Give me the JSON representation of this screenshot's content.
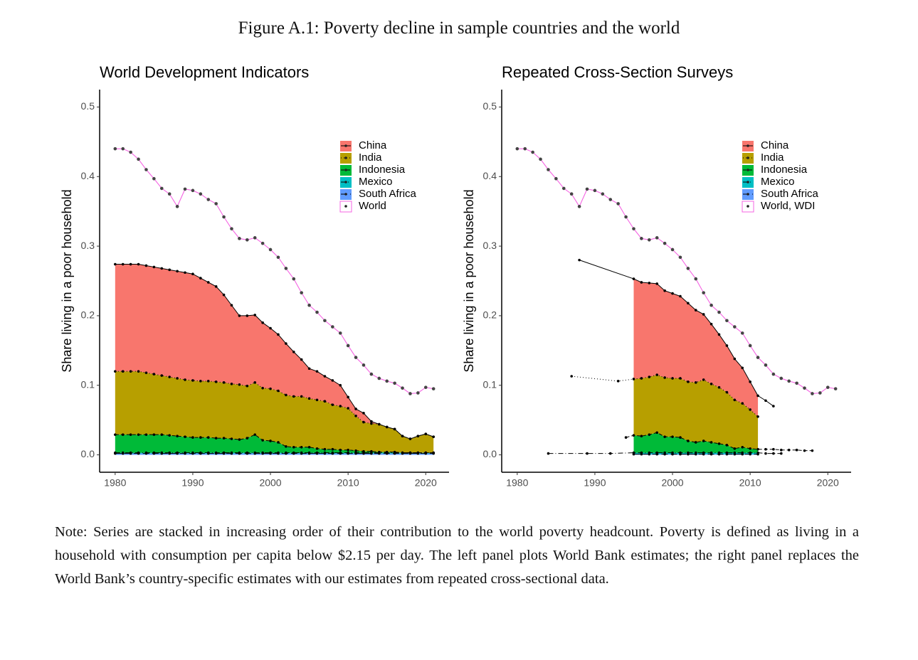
{
  "title": "Figure A.1: Poverty decline in sample countries and the world",
  "note": "Note: Series are stacked in increasing order of their contribution to the world poverty headcount. Poverty is defined as living in a household with consumption per capita below $2.15 per day. The left panel plots World Bank estimates; the right panel replaces the World Bank’s country-specific estimates with our estimates from repeated cross-sectional data.",
  "chart_data": [
    {
      "type": "area",
      "title": "World Development Indicators",
      "y_label": "Share living in a poor household",
      "xlim": [
        1978,
        2023
      ],
      "ylim": [
        -0.025,
        0.525
      ],
      "xticks": [
        1980,
        1990,
        2000,
        2010,
        2020
      ],
      "yticks": [
        {
          "value": 0,
          "label": "0.0"
        },
        0.1,
        0.2,
        0.3,
        0.4,
        0.5
      ],
      "legend": "top right",
      "x": [
        1980,
        1981,
        1982,
        1983,
        1984,
        1985,
        1986,
        1987,
        1988,
        1989,
        1990,
        1991,
        1992,
        1993,
        1994,
        1995,
        1996,
        1997,
        1998,
        1999,
        2000,
        2001,
        2002,
        2003,
        2004,
        2005,
        2006,
        2007,
        2008,
        2009,
        2010,
        2011,
        2012,
        2013,
        2014,
        2015,
        2016,
        2017,
        2018,
        2019,
        2020,
        2021
      ],
      "series": [
        {
          "name": "China",
          "color": "#F8766D",
          "linestyle": "solid",
          "values": [
            0.154,
            0.154,
            0.154,
            0.154,
            0.154,
            0.154,
            0.154,
            0.154,
            0.154,
            0.154,
            0.153,
            0.148,
            0.142,
            0.137,
            0.126,
            0.113,
            0.099,
            0.101,
            0.097,
            0.094,
            0.087,
            0.081,
            0.074,
            0.064,
            0.053,
            0.043,
            0.041,
            0.036,
            0.035,
            0.03,
            0.016,
            0.01,
            0.013,
            0.003,
            0,
            0,
            0,
            0,
            0,
            0,
            0,
            0
          ]
        },
        {
          "name": "India",
          "color": "#B79F00",
          "linestyle": "dotted",
          "values": [
            0.091,
            0.091,
            0.091,
            0.091,
            0.089,
            0.087,
            0.085,
            0.084,
            0.083,
            0.082,
            0.082,
            0.081,
            0.081,
            0.081,
            0.08,
            0.079,
            0.079,
            0.075,
            0.075,
            0.075,
            0.075,
            0.074,
            0.074,
            0.073,
            0.073,
            0.07,
            0.07,
            0.069,
            0.064,
            0.063,
            0.06,
            0.05,
            0.042,
            0.04,
            0.04,
            0.036,
            0.033,
            0.024,
            0.02,
            0.024,
            0.027,
            0.023
          ]
        },
        {
          "name": "Indonesia",
          "color": "#00BA38",
          "linestyle": "dashed",
          "values": [
            0.026,
            0.026,
            0.026,
            0.026,
            0.026,
            0.026,
            0.026,
            0.025,
            0.024,
            0.023,
            0.022,
            0.022,
            0.022,
            0.021,
            0.021,
            0.02,
            0.019,
            0.021,
            0.026,
            0.018,
            0.017,
            0.015,
            0.009,
            0.008,
            0.008,
            0.008,
            0.006,
            0.005,
            0.005,
            0.004,
            0.004,
            0.003,
            0.002,
            0.002,
            0.001,
            0.001,
            0.001,
            0,
            0,
            0,
            0,
            0
          ]
        },
        {
          "name": "Mexico",
          "color": "#00BFC4",
          "linestyle": "dashdot",
          "values": [
            0.001,
            0.001,
            0.001,
            0.001,
            0.001,
            0.001,
            0.001,
            0.001,
            0.001,
            0.001,
            0.001,
            0.001,
            0.001,
            0.001,
            0.001,
            0.001,
            0.001,
            0.001,
            0.001,
            0.001,
            0.001,
            0.001,
            0.001,
            0.001,
            0.001,
            0.001,
            0.001,
            0.001,
            0.001,
            0.001,
            0.001,
            0.001,
            0.001,
            0.001,
            0.001,
            0.001,
            0.001,
            0.001,
            0.001,
            0.001,
            0.001,
            0.001
          ]
        },
        {
          "name": "South Africa",
          "color": "#619CFF",
          "linestyle": "longdash",
          "values": [
            0.002,
            0.002,
            0.002,
            0.002,
            0.002,
            0.002,
            0.002,
            0.002,
            0.002,
            0.002,
            0.002,
            0.002,
            0.002,
            0.002,
            0.002,
            0.002,
            0.002,
            0.002,
            0.002,
            0.002,
            0.002,
            0.002,
            0.002,
            0.002,
            0.002,
            0.002,
            0.002,
            0.002,
            0.002,
            0.002,
            0.002,
            0.002,
            0.002,
            0.002,
            0.002,
            0.002,
            0.002,
            0.002,
            0.002,
            0.002,
            0.002,
            0.002
          ]
        },
        {
          "name": "World",
          "color": "#F564E3",
          "linestyle": "solid",
          "stacked": false,
          "values": [
            0.44,
            0.44,
            0.435,
            0.425,
            0.41,
            0.397,
            0.383,
            0.375,
            0.357,
            0.382,
            0.38,
            0.375,
            0.367,
            0.361,
            0.342,
            0.325,
            0.311,
            0.309,
            0.312,
            0.304,
            0.295,
            0.284,
            0.268,
            0.253,
            0.233,
            0.215,
            0.205,
            0.193,
            0.184,
            0.175,
            0.157,
            0.14,
            0.129,
            0.116,
            0.11,
            0.106,
            0.103,
            0.096,
            0.088,
            0.089,
            0.097,
            0.095
          ]
        }
      ]
    },
    {
      "type": "area",
      "title": "Repeated Cross-Section Surveys",
      "y_label": "Share living in a poor household",
      "xlim": [
        1978,
        2023
      ],
      "ylim": [
        -0.025,
        0.525
      ],
      "xticks": [
        1980,
        1990,
        2000,
        2010,
        2020
      ],
      "yticks": [
        {
          "value": 0,
          "label": "0.0"
        },
        0.1,
        0.2,
        0.3,
        0.4,
        0.5
      ],
      "legend": "top right",
      "x": [
        1980,
        1981,
        1982,
        1983,
        1984,
        1985,
        1986,
        1987,
        1988,
        1989,
        1990,
        1991,
        1992,
        1993,
        1994,
        1995,
        1996,
        1997,
        1998,
        1999,
        2000,
        2001,
        2002,
        2003,
        2004,
        2005,
        2006,
        2007,
        2008,
        2009,
        2010,
        2011,
        2012,
        2013,
        2014,
        2015,
        2016,
        2017,
        2018,
        2019,
        2020,
        2021
      ],
      "series": [
        {
          "name": "China",
          "color": "#F8766D",
          "linestyle": "solid",
          "x": [
            1988,
            1995,
            1996,
            1997,
            1998,
            1999,
            2000,
            2001,
            2002,
            2003,
            2004,
            2005,
            2006,
            2007,
            2008,
            2009,
            2010,
            2011,
            2012,
            2013
          ],
          "values": [
            0.28,
            0.144,
            0.138,
            0.135,
            0.131,
            0.125,
            0.122,
            0.118,
            0.113,
            0.104,
            0.094,
            0.086,
            0.076,
            0.067,
            0.059,
            0.051,
            0.04,
            0.03,
            0.07,
            0.062
          ]
        },
        {
          "name": "India",
          "color": "#B79F00",
          "linestyle": "dotted",
          "x": [
            1987,
            1993,
            1995,
            1996,
            1997,
            1998,
            1999,
            2000,
            2001,
            2002,
            2003,
            2004,
            2005,
            2006,
            2007,
            2008,
            2009,
            2010,
            2011
          ],
          "values": [
            0.113,
            0.106,
            0.081,
            0.083,
            0.083,
            0.083,
            0.085,
            0.084,
            0.085,
            0.085,
            0.086,
            0.088,
            0.084,
            0.081,
            0.076,
            0.07,
            0.063,
            0.056,
            0.047
          ]
        },
        {
          "name": "Indonesia",
          "color": "#00BA38",
          "linestyle": "dashed",
          "x": [
            1994,
            1995,
            1996,
            1997,
            1998,
            1999,
            2000,
            2001,
            2002,
            2003,
            2004,
            2005,
            2006,
            2007,
            2008,
            2009,
            2010,
            2011,
            2012,
            2013,
            2014,
            2015,
            2016,
            2017,
            2018
          ],
          "values": [
            0.025,
            0.025,
            0.024,
            0.026,
            0.029,
            0.023,
            0.023,
            0.022,
            0.017,
            0.015,
            0.017,
            0.015,
            0.013,
            0.011,
            0.006,
            0.008,
            0.006,
            0.005,
            0.006,
            0.006,
            0.005,
            0.007,
            0.007,
            0.006,
            0.006
          ]
        },
        {
          "name": "Mexico",
          "color": "#00BFC4",
          "linestyle": "dashdot",
          "x": [
            1984,
            1989,
            1992,
            1995,
            1996,
            1997,
            1998,
            1999,
            2000,
            2001,
            2002,
            2003,
            2004,
            2005,
            2006,
            2007,
            2008,
            2009,
            2010,
            2011,
            2012,
            2013,
            2014
          ],
          "values": [
            0.002,
            0.002,
            0.002,
            0.002,
            0.002,
            0.002,
            0.002,
            0.002,
            0.002,
            0.002,
            0.002,
            0.002,
            0.002,
            0.002,
            0.002,
            0.002,
            0.002,
            0.002,
            0.002,
            0.002,
            0.002,
            0.002,
            0.002
          ]
        },
        {
          "name": "South Africa",
          "color": "#619CFF",
          "linestyle": "longdash",
          "x": [
            1995,
            1996,
            1997,
            1998,
            1999,
            2000,
            2001,
            2002,
            2003,
            2004,
            2005,
            2006,
            2007,
            2008,
            2009,
            2010,
            2011
          ],
          "values": [
            0.001,
            0.001,
            0.001,
            0.001,
            0.001,
            0.001,
            0.001,
            0.001,
            0.001,
            0.001,
            0.001,
            0.001,
            0.001,
            0.001,
            0.001,
            0.001,
            0.001
          ]
        },
        {
          "name": "World, WDI",
          "color": "#F564E3",
          "linestyle": "solid",
          "stacked": false,
          "values": [
            0.44,
            0.44,
            0.435,
            0.425,
            0.41,
            0.397,
            0.383,
            0.375,
            0.357,
            0.382,
            0.38,
            0.375,
            0.367,
            0.361,
            0.342,
            0.325,
            0.311,
            0.309,
            0.312,
            0.304,
            0.295,
            0.284,
            0.268,
            0.253,
            0.233,
            0.215,
            0.205,
            0.193,
            0.184,
            0.175,
            0.157,
            0.14,
            0.129,
            0.116,
            0.11,
            0.106,
            0.103,
            0.096,
            0.088,
            0.089,
            0.097,
            0.095
          ]
        }
      ]
    }
  ]
}
